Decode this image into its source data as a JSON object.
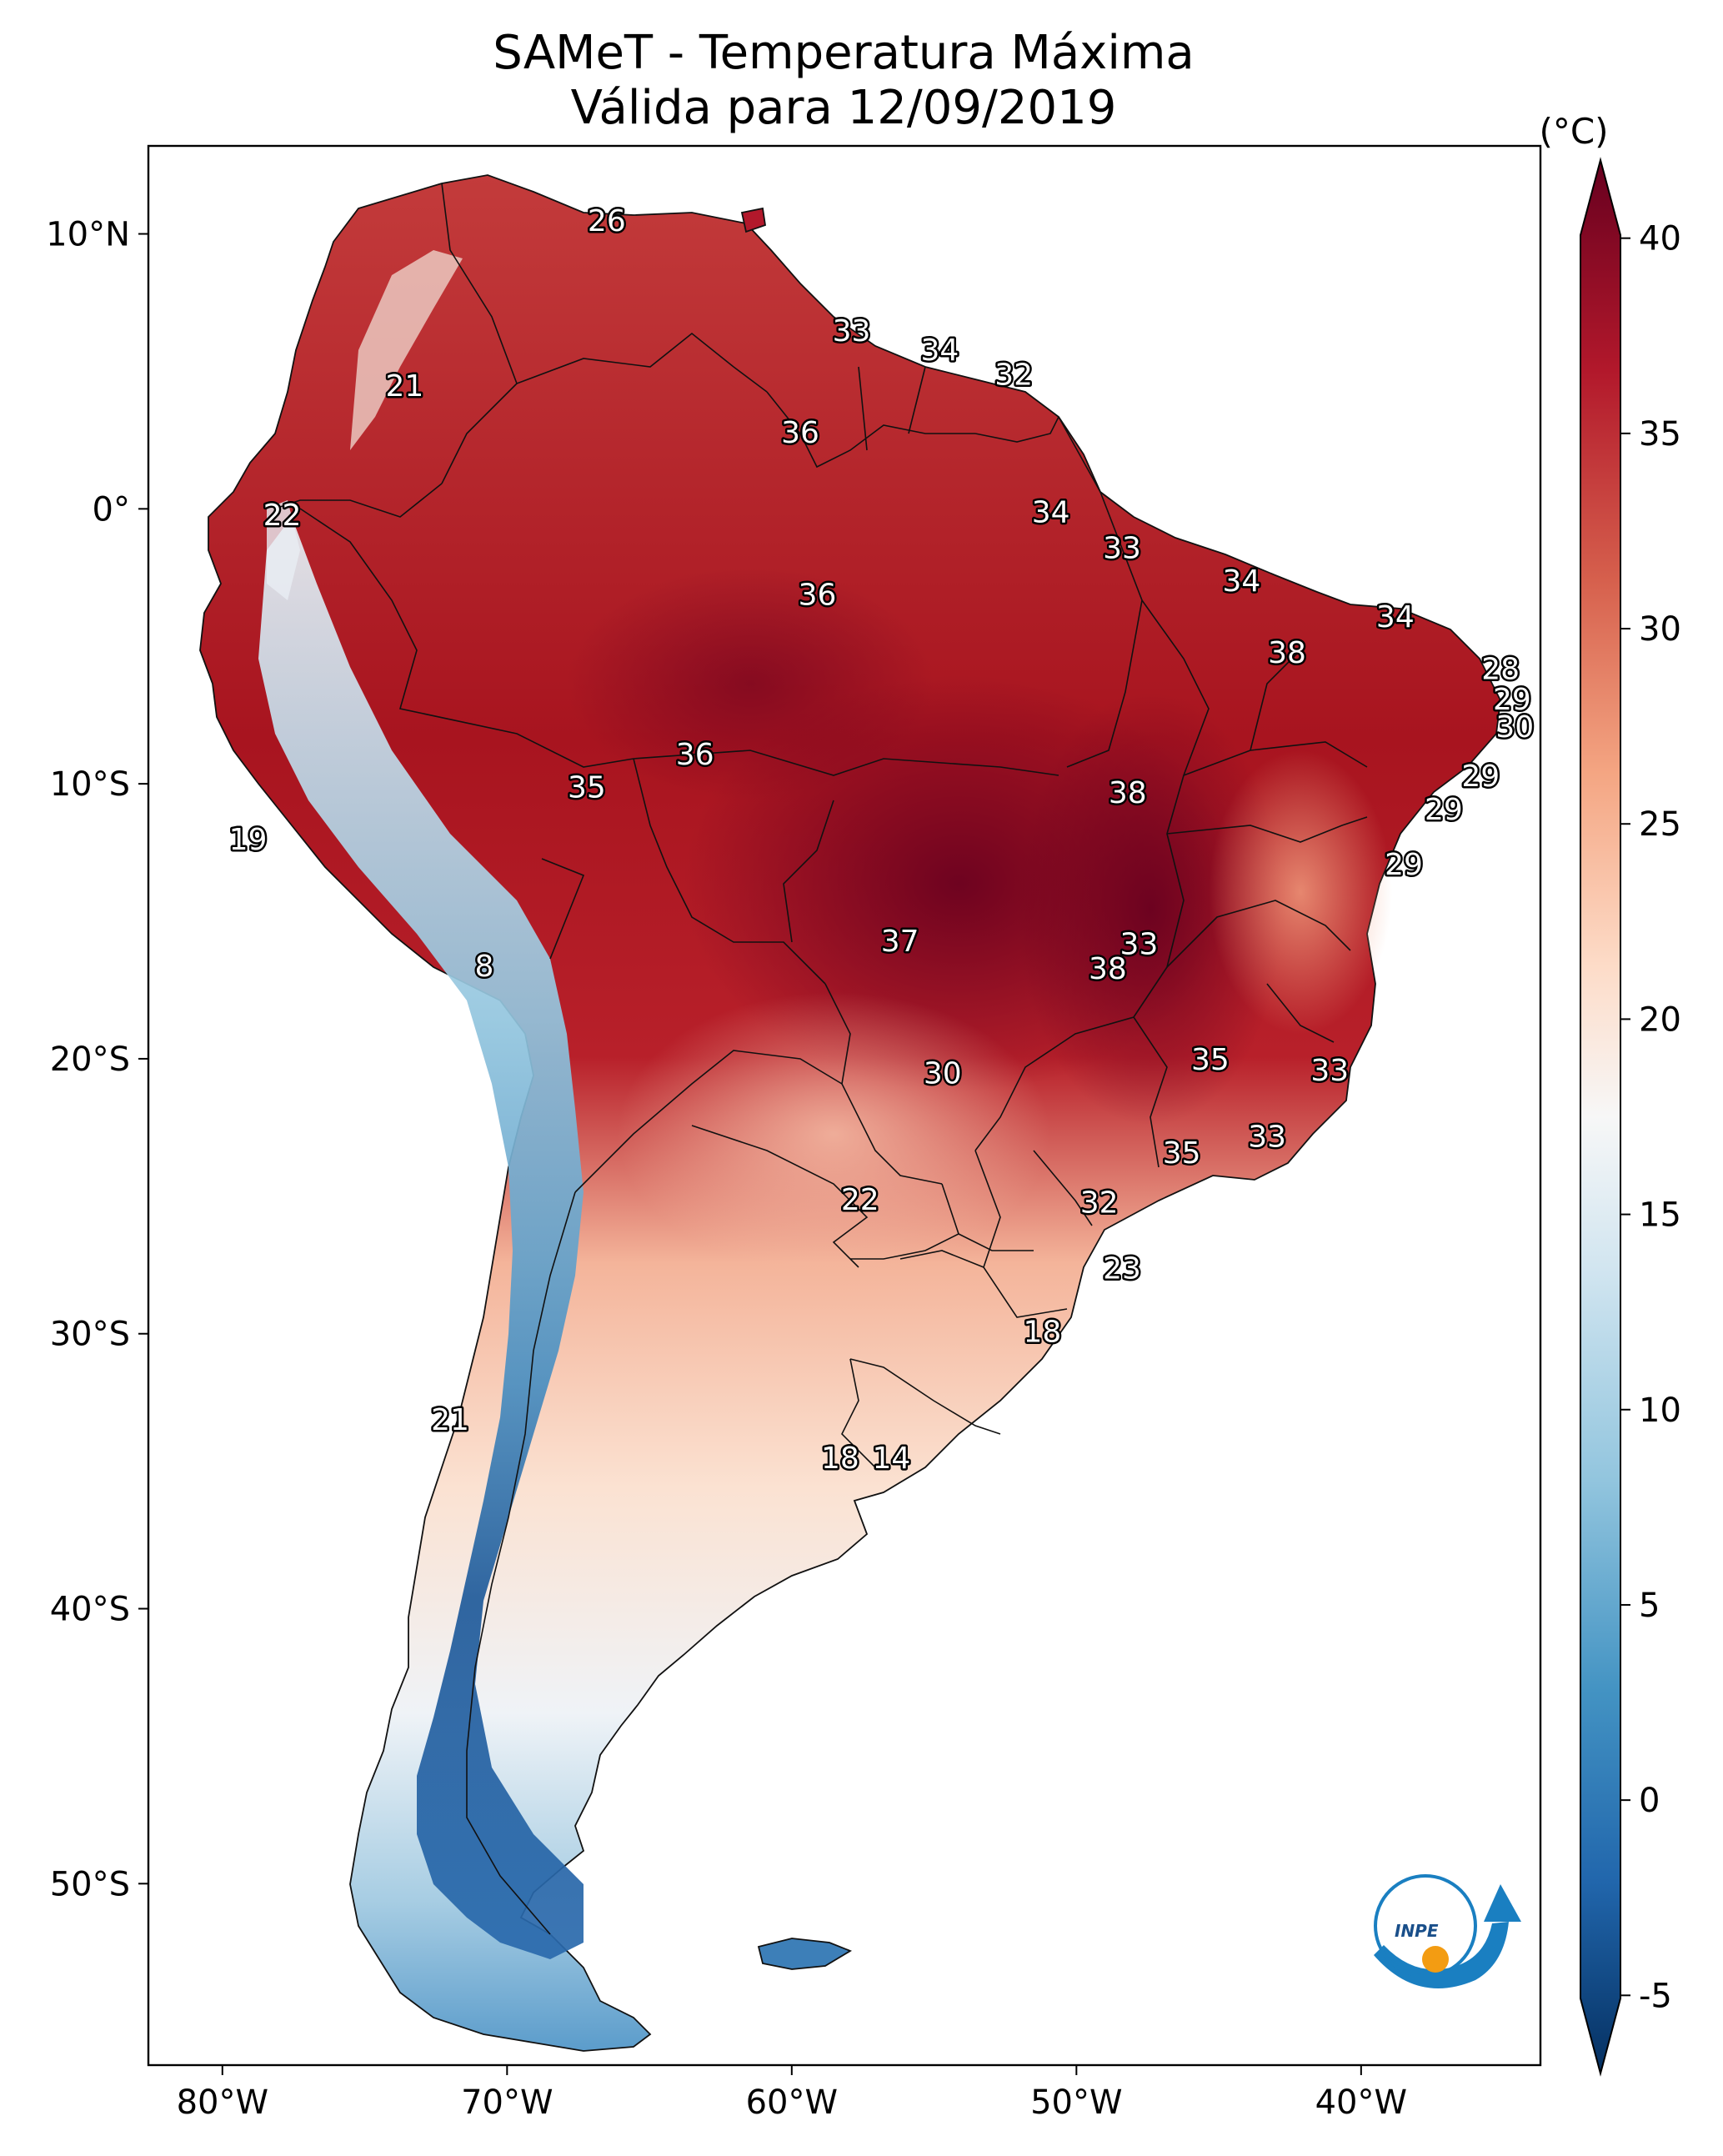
{
  "title": {
    "line1": "SAMeT - Temperatura Máxima",
    "line2": "Válida para 12/09/2019"
  },
  "colorbar": {
    "unit": "(°C)",
    "min": -7,
    "max": 42,
    "ticks": [
      40,
      35,
      30,
      25,
      20,
      15,
      10,
      5,
      0,
      -5
    ],
    "tick_labels": [
      "40",
      "35",
      "30",
      "25",
      "20",
      "15",
      "10",
      "5",
      "0",
      "-5"
    ],
    "palette": "RdBu_r"
  },
  "axes": {
    "lon_range": [
      -82.6,
      -33.7
    ],
    "lat_range": [
      -56.6,
      13.2
    ],
    "lat_ticks": [
      {
        "value": 10,
        "label": "10°N"
      },
      {
        "value": 0,
        "label": "0°"
      },
      {
        "value": -10,
        "label": "10°S"
      },
      {
        "value": -20,
        "label": "20°S"
      },
      {
        "value": -30,
        "label": "30°S"
      },
      {
        "value": -40,
        "label": "40°S"
      },
      {
        "value": -50,
        "label": "50°S"
      }
    ],
    "lon_ticks": [
      {
        "value": -80,
        "label": "80°W"
      },
      {
        "value": -70,
        "label": "70°W"
      },
      {
        "value": -60,
        "label": "60°W"
      },
      {
        "value": -50,
        "label": "50°W"
      },
      {
        "value": -40,
        "label": "40°W"
      }
    ]
  },
  "labels": [
    {
      "lon": -66.5,
      "lat": 10.5,
      "text": "26"
    },
    {
      "lon": -73.6,
      "lat": 4.5,
      "text": "21"
    },
    {
      "lon": -57.9,
      "lat": 6.5,
      "text": "33"
    },
    {
      "lon": -54.8,
      "lat": 5.8,
      "text": "34"
    },
    {
      "lon": -52.2,
      "lat": 4.9,
      "text": "32"
    },
    {
      "lon": -59.7,
      "lat": 2.8,
      "text": "36"
    },
    {
      "lon": -77.9,
      "lat": -0.2,
      "text": "22"
    },
    {
      "lon": -50.9,
      "lat": -0.1,
      "text": "34"
    },
    {
      "lon": -48.4,
      "lat": -1.4,
      "text": "33"
    },
    {
      "lon": -44.2,
      "lat": -2.6,
      "text": "34"
    },
    {
      "lon": -59.1,
      "lat": -3.1,
      "text": "36"
    },
    {
      "lon": -38.8,
      "lat": -3.9,
      "text": "34"
    },
    {
      "lon": -42.6,
      "lat": -5.2,
      "text": "38"
    },
    {
      "lon": -35.1,
      "lat": -5.8,
      "text": "28"
    },
    {
      "lon": -34.7,
      "lat": -6.9,
      "text": "29"
    },
    {
      "lon": -34.6,
      "lat": -7.9,
      "text": "30"
    },
    {
      "lon": -63.4,
      "lat": -8.9,
      "text": "36"
    },
    {
      "lon": -35.8,
      "lat": -9.7,
      "text": "29"
    },
    {
      "lon": -67.2,
      "lat": -10.1,
      "text": "35"
    },
    {
      "lon": -48.2,
      "lat": -10.3,
      "text": "38"
    },
    {
      "lon": -37.1,
      "lat": -10.9,
      "text": "29"
    },
    {
      "lon": -38.5,
      "lat": -12.9,
      "text": "29"
    },
    {
      "lon": -79.1,
      "lat": -12.0,
      "text": "19"
    },
    {
      "lon": -56.2,
      "lat": -15.7,
      "text": "37"
    },
    {
      "lon": -47.8,
      "lat": -15.8,
      "text": "33"
    },
    {
      "lon": -48.9,
      "lat": -16.7,
      "text": "38"
    },
    {
      "lon": -70.8,
      "lat": -16.6,
      "text": "8"
    },
    {
      "lon": -54.7,
      "lat": -20.5,
      "text": "30"
    },
    {
      "lon": -45.3,
      "lat": -20.0,
      "text": "35"
    },
    {
      "lon": -41.1,
      "lat": -20.4,
      "text": "33"
    },
    {
      "lon": -43.3,
      "lat": -22.8,
      "text": "33"
    },
    {
      "lon": -46.3,
      "lat": -23.4,
      "text": "35"
    },
    {
      "lon": -57.6,
      "lat": -25.1,
      "text": "22"
    },
    {
      "lon": -49.2,
      "lat": -25.2,
      "text": "32"
    },
    {
      "lon": -48.4,
      "lat": -27.6,
      "text": "23"
    },
    {
      "lon": -51.2,
      "lat": -29.9,
      "text": "18"
    },
    {
      "lon": -72.0,
      "lat": -33.1,
      "text": "21"
    },
    {
      "lon": -58.3,
      "lat": -34.5,
      "text": "18"
    },
    {
      "lon": -56.5,
      "lat": -34.5,
      "text": "14"
    }
  ],
  "logo": {
    "name": "INPE",
    "text": "INPE"
  }
}
